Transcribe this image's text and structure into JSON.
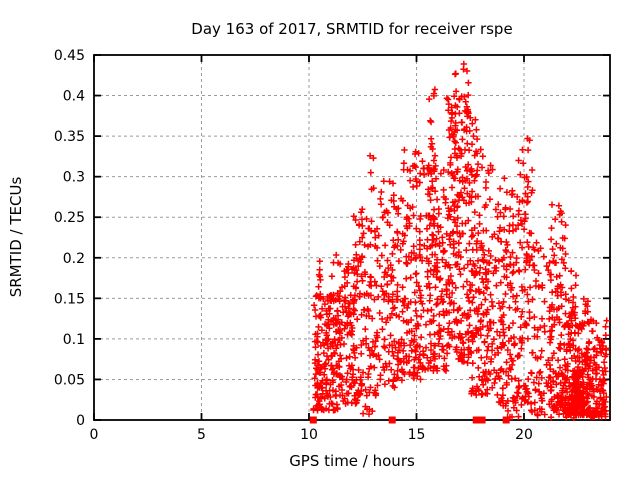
{
  "figure": {
    "background_color": "#ffffff",
    "text_color": "#000000"
  },
  "chart_data": {
    "type": "scatter",
    "title": "Day 163 of 2017, SRMTID for receiver rspe",
    "xlabel": "GPS time / hours",
    "ylabel": "SRMTID / TECUs",
    "xlim": [
      0,
      24
    ],
    "ylim": [
      0,
      0.45
    ],
    "x_tick_values": [
      0,
      5,
      10,
      15,
      20
    ],
    "x_tick_labels": [
      "0",
      "5",
      "10",
      "15",
      "20"
    ],
    "y_tick_values": [
      0,
      0.05,
      0.1,
      0.15,
      0.2,
      0.25,
      0.3,
      0.35,
      0.4,
      0.45
    ],
    "y_tick_labels": [
      "0",
      "0.05",
      "0.1",
      "0.15",
      "0.2",
      "0.25",
      "0.3",
      "0.35",
      "0.4",
      "0.45"
    ],
    "grid": {
      "show": true,
      "color": "#9b9b9b",
      "dash": "3,3"
    },
    "axis_color": "#000000",
    "seed": 7,
    "data_x_range_hours": [
      10.2,
      23.85
    ],
    "data_y_max": 0.443,
    "peak_time_hours": 17.0,
    "series": [
      {
        "name": "SRMTID values",
        "marker": "plus",
        "color": "#ff0000",
        "clusters": [
          {
            "x0": 10.2,
            "x1": 11.35,
            "y0": 0.012,
            "y1": 0.155,
            "n": 170,
            "bias": 1.6
          },
          {
            "x0": 10.42,
            "x1": 10.62,
            "y0": 0.12,
            "y1": 0.2,
            "n": 8,
            "bias": 1.0
          },
          {
            "x0": 11.05,
            "x1": 11.45,
            "y0": 0.1,
            "y1": 0.21,
            "n": 14,
            "bias": 1.0
          },
          {
            "x0": 11.35,
            "x1": 12.3,
            "y0": 0.02,
            "y1": 0.2,
            "n": 120,
            "bias": 1.5
          },
          {
            "x0": 12.05,
            "x1": 12.5,
            "y0": 0.14,
            "y1": 0.26,
            "n": 16,
            "bias": 1.0
          },
          {
            "x0": 12.3,
            "x1": 13.3,
            "y0": 0.03,
            "y1": 0.25,
            "n": 100,
            "bias": 1.4
          },
          {
            "x0": 12.82,
            "x1": 13.02,
            "y0": 0.25,
            "y1": 0.33,
            "n": 5,
            "bias": 1.0
          },
          {
            "x0": 13.3,
            "x1": 14.4,
            "y0": 0.04,
            "y1": 0.3,
            "n": 125,
            "bias": 1.35
          },
          {
            "x0": 14.4,
            "x1": 15.45,
            "y0": 0.05,
            "y1": 0.335,
            "n": 140,
            "bias": 1.25
          },
          {
            "x0": 15.55,
            "x1": 15.98,
            "y0": 0.14,
            "y1": 0.41,
            "n": 38,
            "bias": 1.0
          },
          {
            "x0": 15.45,
            "x1": 16.4,
            "y0": 0.06,
            "y1": 0.31,
            "n": 120,
            "bias": 1.2
          },
          {
            "x0": 16.4,
            "x1": 17.6,
            "y0": 0.07,
            "y1": 0.4,
            "n": 230,
            "bias": 1.15
          },
          {
            "x0": 16.75,
            "x1": 17.45,
            "y0": 0.355,
            "y1": 0.443,
            "n": 20,
            "bias": 1.0
          },
          {
            "x0": 17.55,
            "x1": 18.6,
            "y0": 0.03,
            "y1": 0.33,
            "n": 160,
            "bias": 1.3
          },
          {
            "x0": 17.65,
            "x1": 18.05,
            "y0": 0.3,
            "y1": 0.372,
            "n": 9,
            "bias": 1.0
          },
          {
            "x0": 18.6,
            "x1": 19.6,
            "y0": 0.02,
            "y1": 0.3,
            "n": 130,
            "bias": 1.35
          },
          {
            "x0": 19.6,
            "x1": 20.4,
            "y0": 0.02,
            "y1": 0.325,
            "n": 100,
            "bias": 1.3
          },
          {
            "x0": 19.92,
            "x1": 20.28,
            "y0": 0.26,
            "y1": 0.356,
            "n": 9,
            "bias": 1.0
          },
          {
            "x0": 20.4,
            "x1": 21.2,
            "y0": 0.012,
            "y1": 0.22,
            "n": 60,
            "bias": 1.5
          },
          {
            "x0": 21.2,
            "x1": 21.95,
            "y0": 0.012,
            "y1": 0.268,
            "n": 130,
            "bias": 1.7
          },
          {
            "x0": 21.9,
            "x1": 23.0,
            "y0": 0.006,
            "y1": 0.16,
            "n": 200,
            "bias": 1.8
          },
          {
            "x0": 22.2,
            "x1": 22.8,
            "y0": 0.012,
            "y1": 0.062,
            "n": 90,
            "bias": 1.2
          },
          {
            "x0": 22.15,
            "x1": 22.45,
            "y0": 0.1,
            "y1": 0.185,
            "n": 15,
            "bias": 1.0
          },
          {
            "x0": 23.0,
            "x1": 23.85,
            "y0": 0.004,
            "y1": 0.125,
            "n": 120,
            "bias": 1.6
          },
          {
            "x0": 12.5,
            "x1": 13.1,
            "y0": 0.006,
            "y1": 0.02,
            "n": 6,
            "bias": 1.0
          },
          {
            "x0": 19.0,
            "x1": 20.0,
            "y0": 0.002,
            "y1": 0.02,
            "n": 10,
            "bias": 1.0
          },
          {
            "x0": 20.3,
            "x1": 23.6,
            "y0": 0.002,
            "y1": 0.014,
            "n": 22,
            "bias": 1.0
          }
        ]
      },
      {
        "name": "zero flags",
        "marker": "filled-square",
        "color": "#ff0000",
        "x": [
          10.2,
          13.87,
          17.78,
          18.05,
          19.17
        ],
        "y": [
          0,
          0,
          0,
          0,
          0
        ]
      }
    ]
  }
}
